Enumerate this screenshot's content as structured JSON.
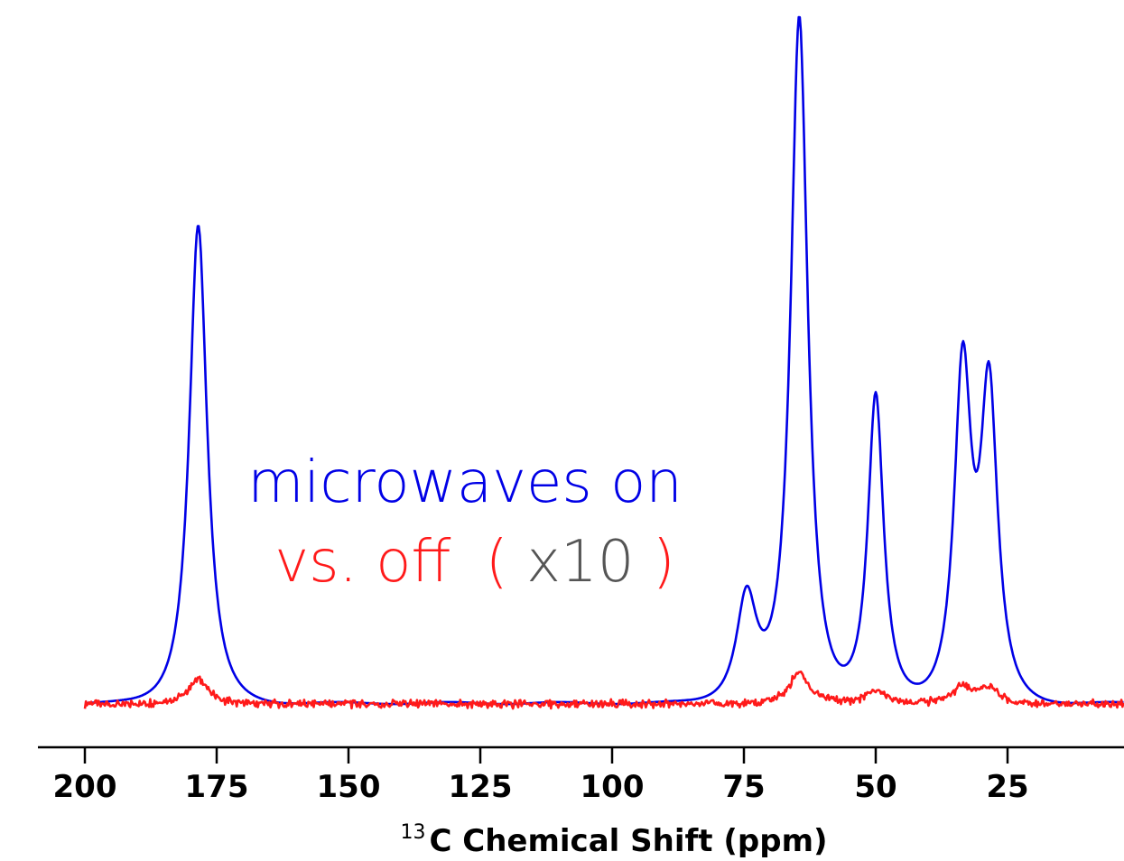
{
  "chart_data": {
    "type": "line",
    "xlabel_sup": "13",
    "xlabel": "C Chemical Shift (ppm)",
    "x_reversed": true,
    "xlim": [
      210,
      -8
    ],
    "ylim": [
      0,
      1.0
    ],
    "x_ticks": [
      200,
      175,
      150,
      125,
      100,
      75,
      50,
      25
    ],
    "x_tick_labels": [
      "200",
      "175",
      "150",
      "125",
      "100",
      "75",
      "50",
      "25"
    ],
    "y_axis_shown": false,
    "grid": false,
    "annotation": {
      "line1": "microwaves on",
      "line2_a": "vs. off",
      "line2_b": "(",
      "line2_c": "x10",
      "line2_d": ")"
    },
    "colors": {
      "on": "#0000e6",
      "off": "#ff1a1a",
      "gray": "#555555",
      "axis": "#000000"
    },
    "series": [
      {
        "key": "on",
        "peaks": [
          {
            "center": 178.5,
            "height": 0.7,
            "width": 2.6
          },
          {
            "center": 74.5,
            "height": 0.155,
            "width": 3.0
          },
          {
            "center": 64.5,
            "height": 1.0,
            "width": 2.5
          },
          {
            "center": 50.0,
            "height": 0.45,
            "width": 2.3
          },
          {
            "center": 33.5,
            "height": 0.48,
            "width": 2.5
          },
          {
            "center": 28.5,
            "height": 0.445,
            "width": 2.5
          }
        ]
      },
      {
        "key": "off",
        "peaks": [
          {
            "center": 178.5,
            "height": 0.035,
            "width": 3.0
          },
          {
            "center": 64.5,
            "height": 0.045,
            "width": 3.0
          },
          {
            "center": 50.0,
            "height": 0.02,
            "width": 3.0
          },
          {
            "center": 33.5,
            "height": 0.025,
            "width": 3.0
          },
          {
            "center": 28.5,
            "height": 0.022,
            "width": 3.0
          }
        ]
      }
    ]
  }
}
